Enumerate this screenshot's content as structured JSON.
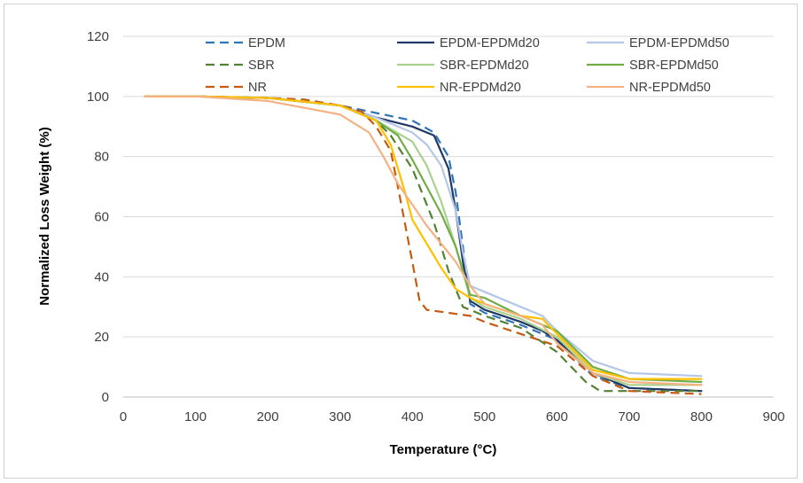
{
  "chart_data": {
    "type": "line",
    "title": "",
    "xlabel": "Temperature (°C)",
    "ylabel": "Normalized Loss Weight (%)",
    "xlim": [
      0,
      900
    ],
    "ylim": [
      0,
      120
    ],
    "xticks": [
      0,
      100,
      200,
      300,
      400,
      500,
      600,
      700,
      800,
      900
    ],
    "yticks": [
      0,
      20,
      40,
      60,
      80,
      100,
      120
    ],
    "grid": "horizontal",
    "legend_position": "top",
    "series": [
      {
        "name": "EPDM",
        "color": "#2e75b6",
        "style": "dashed",
        "x": [
          30,
          100,
          200,
          300,
          360,
          400,
          430,
          450,
          460,
          470,
          480,
          500,
          550,
          600,
          650,
          700,
          800
        ],
        "y": [
          100,
          100,
          99.5,
          97,
          94,
          92,
          88,
          80,
          68,
          50,
          31,
          28,
          24,
          19,
          7,
          3,
          2
        ]
      },
      {
        "name": "EPDM-EPDMd20",
        "color": "#203864",
        "style": "solid",
        "x": [
          30,
          100,
          200,
          300,
          350,
          400,
          430,
          450,
          460,
          470,
          480,
          500,
          550,
          580,
          600,
          650,
          700,
          800
        ],
        "y": [
          100,
          100,
          99.5,
          97,
          93,
          90,
          87,
          76,
          62,
          45,
          32,
          29,
          25,
          22,
          19,
          8,
          3,
          2
        ]
      },
      {
        "name": "EPDM-EPDMd50",
        "color": "#b4c7e7",
        "style": "solid",
        "x": [
          30,
          100,
          200,
          300,
          350,
          400,
          420,
          440,
          460,
          470,
          480,
          500,
          550,
          580,
          600,
          650,
          700,
          800
        ],
        "y": [
          100,
          100,
          99.5,
          97,
          93,
          88,
          84,
          77,
          62,
          48,
          37,
          35,
          30,
          27,
          22,
          12,
          8,
          7
        ]
      },
      {
        "name": "SBR",
        "color": "#548235",
        "style": "dashed",
        "x": [
          30,
          100,
          200,
          300,
          350,
          370,
          400,
          430,
          450,
          470,
          500,
          550,
          600,
          640,
          660,
          700,
          800
        ],
        "y": [
          100,
          100,
          99.5,
          97,
          92,
          87,
          76,
          58,
          42,
          30,
          27,
          23,
          15,
          5,
          2,
          2,
          2
        ]
      },
      {
        "name": "SBR-EPDMd20",
        "color": "#a9d18e",
        "style": "solid",
        "x": [
          30,
          100,
          200,
          300,
          350,
          400,
          420,
          440,
          460,
          480,
          500,
          550,
          600,
          650,
          700,
          800
        ],
        "y": [
          100,
          100,
          99.5,
          97,
          92,
          85,
          77,
          65,
          50,
          33,
          30,
          26,
          20,
          8,
          4,
          4
        ]
      },
      {
        "name": "SBR-EPDMd50",
        "color": "#70ad47",
        "style": "solid",
        "x": [
          30,
          100,
          200,
          300,
          350,
          380,
          400,
          420,
          440,
          460,
          480,
          500,
          550,
          600,
          650,
          700,
          800
        ],
        "y": [
          100,
          100,
          99.5,
          97,
          92,
          87,
          79,
          70,
          61,
          50,
          34,
          33,
          27,
          22,
          10,
          6,
          5
        ]
      },
      {
        "name": "NR",
        "color": "#c55a11",
        "style": "dashed",
        "x": [
          30,
          100,
          200,
          250,
          300,
          330,
          350,
          370,
          380,
          400,
          410,
          420,
          450,
          480,
          500,
          550,
          600,
          650,
          700,
          800
        ],
        "y": [
          100,
          100,
          99.5,
          99,
          97,
          95,
          90,
          82,
          70,
          45,
          32,
          29,
          28,
          27,
          25,
          21,
          17,
          7,
          2,
          1
        ]
      },
      {
        "name": "NR-EPDMd20",
        "color": "#ffc000",
        "style": "solid",
        "x": [
          30,
          100,
          200,
          300,
          350,
          370,
          390,
          400,
          420,
          440,
          460,
          480,
          500,
          550,
          580,
          600,
          650,
          700,
          800
        ],
        "y": [
          100,
          100,
          99.5,
          97,
          92,
          84,
          68,
          59,
          51,
          43,
          36,
          33,
          31,
          27,
          26,
          21,
          9,
          6,
          6
        ]
      },
      {
        "name": "NR-EPDMd50",
        "color": "#f4b183",
        "style": "solid",
        "x": [
          30,
          100,
          200,
          300,
          340,
          360,
          380,
          400,
          420,
          440,
          460,
          480,
          500,
          550,
          580,
          600,
          650,
          700,
          800
        ],
        "y": [
          100,
          100,
          98.5,
          94,
          88,
          80,
          71,
          64,
          57,
          51,
          45,
          37,
          31,
          27,
          24,
          18,
          8,
          5,
          4
        ]
      }
    ]
  }
}
